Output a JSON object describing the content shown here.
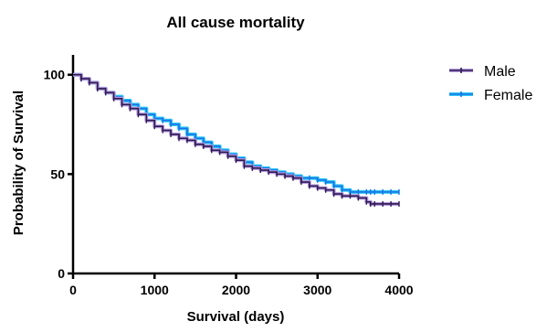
{
  "chart_data": {
    "type": "line",
    "title": "All cause mortality",
    "xlabel": "Survival (days)",
    "ylabel": "Probability of Survival",
    "xlim": [
      0,
      4000
    ],
    "ylim": [
      0,
      110
    ],
    "xticks": [
      0,
      1000,
      2000,
      3000,
      4000
    ],
    "yticks": [
      0,
      50,
      100
    ],
    "grid": false,
    "legend": "right",
    "series": [
      {
        "name": "Male",
        "color": "#2e1a4f",
        "halo": "#b49adf",
        "step": true,
        "x": [
          0,
          100,
          200,
          300,
          400,
          500,
          600,
          700,
          800,
          900,
          1000,
          1100,
          1200,
          1300,
          1400,
          1500,
          1600,
          1700,
          1800,
          1900,
          2000,
          2100,
          2200,
          2300,
          2400,
          2500,
          2600,
          2700,
          2800,
          2900,
          3000,
          3100,
          3200,
          3300,
          3400,
          3500,
          3600,
          3650,
          3700,
          3800,
          3900,
          4000
        ],
        "y": [
          100,
          98,
          96,
          93,
          91,
          88,
          85,
          83,
          80,
          77,
          74,
          72,
          70,
          68,
          67,
          65,
          64,
          62,
          61,
          59,
          57,
          54,
          53,
          52,
          51,
          50,
          49,
          48,
          46,
          44,
          43,
          42,
          40,
          39,
          39,
          38,
          36,
          35,
          35,
          35,
          35,
          35
        ]
      },
      {
        "name": "Female",
        "color": "#1a73e8",
        "halo": "#2ec8f5",
        "step": true,
        "x": [
          0,
          100,
          200,
          300,
          400,
          500,
          600,
          700,
          800,
          900,
          1000,
          1100,
          1200,
          1300,
          1400,
          1500,
          1600,
          1700,
          1800,
          1900,
          2000,
          2100,
          2200,
          2300,
          2400,
          2500,
          2600,
          2700,
          2800,
          2900,
          3000,
          3100,
          3200,
          3300,
          3400,
          3500,
          3600,
          3650,
          3700,
          3800,
          3900,
          4000
        ],
        "y": [
          100,
          98,
          96,
          93,
          91,
          89,
          87,
          85,
          83,
          80,
          78,
          77,
          75,
          73,
          70,
          68,
          66,
          64,
          62,
          60,
          58,
          56,
          54,
          53,
          52,
          51,
          50,
          49,
          48,
          48,
          47,
          46,
          44,
          42,
          41,
          41,
          41,
          41,
          41,
          41,
          41,
          41
        ]
      }
    ]
  }
}
